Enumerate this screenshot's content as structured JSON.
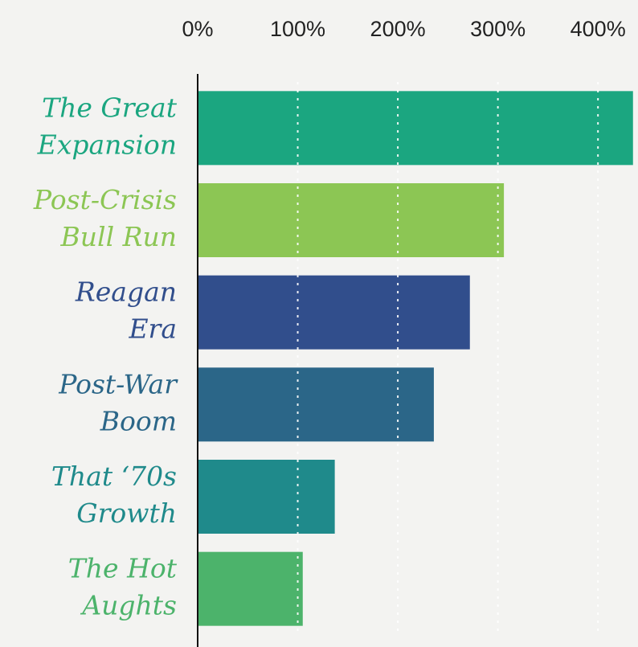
{
  "chart_data": {
    "type": "barh",
    "categories": [
      [
        "The Great",
        "Expansion"
      ],
      [
        "Post-Crisis",
        "Bull Run"
      ],
      [
        "Reagan",
        "Era"
      ],
      [
        "Post-War",
        "Boom"
      ],
      [
        "That ‘70s",
        "Growth"
      ],
      [
        "The Hot",
        "Aughts"
      ]
    ],
    "values": [
      435,
      306,
      272,
      236,
      137,
      105
    ],
    "colors": [
      "#1ba680",
      "#8cc654",
      "#314e8c",
      "#2b6688",
      "#1f8a8b",
      "#4cb36b"
    ],
    "xlim": [
      0,
      440
    ],
    "xticks": [
      {
        "value": 0,
        "label": "0%"
      },
      {
        "value": 100,
        "label": "100%"
      },
      {
        "value": 200,
        "label": "200%"
      },
      {
        "value": 300,
        "label": "300%"
      },
      {
        "value": 400,
        "label": "400%"
      }
    ],
    "grid": true
  }
}
